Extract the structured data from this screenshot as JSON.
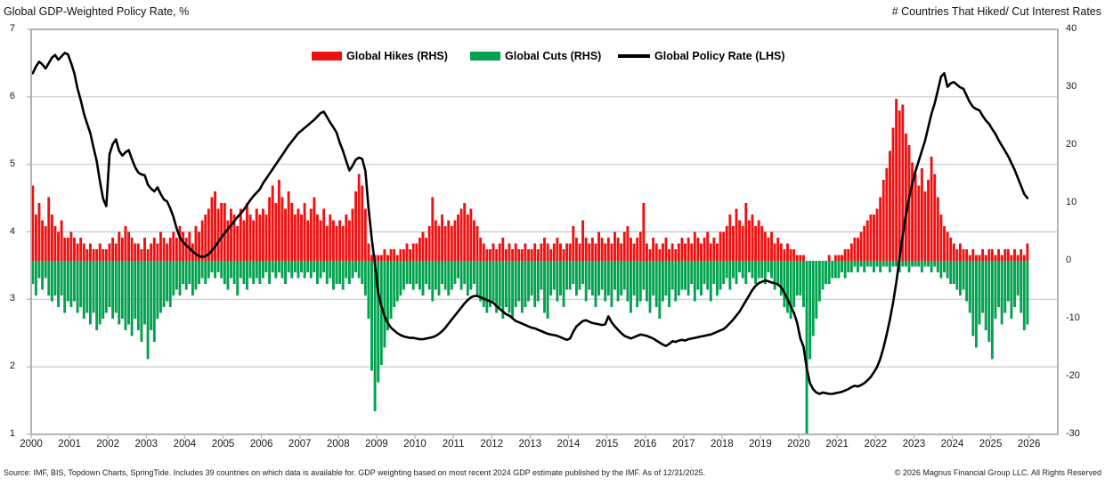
{
  "titles": {
    "left": "Global GDP-Weighted Policy Rate, %",
    "right": "# Countries That Hiked/ Cut Interest Rates"
  },
  "legend": {
    "items": [
      {
        "label": "Global Hikes (RHS)",
        "color": "#ee1111",
        "swatch": "box"
      },
      {
        "label": "Global Cuts (RHS)",
        "color": "#00a24e",
        "swatch": "box"
      },
      {
        "label": "Global Policy Rate (LHS)",
        "color": "#000000",
        "swatch": "line"
      }
    ]
  },
  "footer": {
    "source": "Source: IMF, BIS, Topdown Charts, SpringTide. Includes 39 countries on which data is available for. GDP weighting based on most recent 2024 GDP estimate published by the IMF. As of 12/31/2025.",
    "copyright": "© 2026 Magnus Financial Group LLC. All Rights Reserved"
  },
  "chart_data": {
    "type": "combo",
    "title": "Global GDP-Weighted Policy Rate, %",
    "x_start": "2000-01",
    "x_end": "2025-12",
    "frequency": "monthly",
    "x_ticks": [
      2000,
      2001,
      2002,
      2003,
      2004,
      2005,
      2006,
      2007,
      2008,
      2009,
      2010,
      2011,
      2012,
      2013,
      2014,
      2015,
      2016,
      2017,
      2018,
      2019,
      2020,
      2021,
      2022,
      2023,
      2024,
      2025,
      2026
    ],
    "x_domain_years": 26.75,
    "left_axis": {
      "title": "Global GDP-Weighted Policy Rate, %",
      "min": 1,
      "max": 7,
      "ticks": [
        7,
        6,
        5,
        4,
        3,
        2,
        1
      ]
    },
    "right_axis": {
      "title": "# Countries That Hiked/ Cut Interest Rates",
      "min": -30,
      "max": 40,
      "ticks": [
        40,
        30,
        20,
        10,
        0,
        -10,
        -20,
        -30
      ]
    },
    "grid": {
      "horizontal_at_left_values": [
        6,
        5,
        4,
        3,
        2
      ],
      "color": "#c9c9c9"
    },
    "frame_color": "#b3b3b3",
    "legend_position": "top-inside",
    "series": [
      {
        "name": "Global Hikes (RHS)",
        "type": "bar",
        "axis": "right",
        "color": "#ee1111",
        "start_year": 2000,
        "values_by_year": [
          [
            13,
            8,
            10,
            7,
            6,
            11,
            8,
            6,
            5,
            7,
            4,
            4
          ],
          [
            5,
            4,
            3,
            4,
            3,
            2,
            3,
            2,
            2,
            3,
            2,
            2
          ],
          [
            3,
            4,
            3,
            5,
            4,
            6,
            5,
            4,
            3,
            3,
            2,
            4
          ],
          [
            2,
            3,
            4,
            3,
            5,
            4,
            3,
            4,
            5,
            4,
            6,
            5
          ],
          [
            4,
            5,
            3,
            6,
            5,
            7,
            8,
            9,
            11,
            12,
            9,
            10
          ],
          [
            10,
            7,
            9,
            8,
            6,
            9,
            7,
            10,
            8,
            7,
            9,
            8
          ],
          [
            9,
            8,
            11,
            13,
            10,
            14,
            11,
            9,
            12,
            10,
            8,
            9
          ],
          [
            8,
            10,
            7,
            9,
            11,
            8,
            7,
            9,
            6,
            8,
            7,
            6
          ],
          [
            7,
            6,
            8,
            7,
            9,
            12,
            15,
            13,
            9,
            3,
            1,
            1
          ],
          [
            1,
            1,
            2,
            1,
            2,
            2,
            1,
            2,
            2,
            3,
            2,
            3
          ],
          [
            3,
            4,
            5,
            4,
            6,
            11,
            7,
            6,
            8,
            6,
            7,
            6
          ],
          [
            7,
            8,
            9,
            10,
            8,
            9,
            7,
            6,
            4,
            3,
            2,
            2
          ],
          [
            3,
            2,
            3,
            4,
            2,
            3,
            2,
            3,
            2,
            2,
            3,
            2
          ],
          [
            2,
            3,
            2,
            3,
            4,
            3,
            2,
            3,
            4,
            3,
            2,
            3
          ],
          [
            3,
            6,
            4,
            3,
            7,
            4,
            3,
            4,
            3,
            5,
            4,
            3
          ],
          [
            4,
            3,
            5,
            4,
            3,
            5,
            6,
            4,
            3,
            4,
            5,
            10
          ],
          [
            3,
            2,
            4,
            3,
            2,
            3,
            4,
            2,
            3,
            2,
            3,
            4
          ],
          [
            3,
            4,
            3,
            5,
            4,
            3,
            4,
            5,
            3,
            4,
            3,
            5
          ],
          [
            5,
            6,
            8,
            6,
            9,
            7,
            6,
            10,
            7,
            8,
            6,
            7
          ],
          [
            6,
            5,
            4,
            5,
            3,
            4,
            3,
            2,
            3,
            2,
            2,
            1
          ],
          [
            1,
            1,
            0,
            0,
            0,
            0,
            0,
            0,
            0,
            1,
            0,
            1
          ],
          [
            1,
            1,
            2,
            2,
            3,
            4,
            4,
            5,
            6,
            7,
            8,
            8
          ],
          [
            9,
            11,
            14,
            16,
            19,
            23,
            28,
            26,
            27,
            22,
            20,
            17
          ],
          [
            15,
            13,
            16,
            12,
            14,
            18,
            15,
            11,
            8,
            6,
            5,
            4
          ],
          [
            3,
            2,
            3,
            2,
            2,
            1,
            2,
            1,
            1,
            2,
            1,
            2
          ],
          [
            2,
            1,
            2,
            1,
            2,
            2,
            1,
            2,
            1,
            2,
            1,
            3
          ]
        ]
      },
      {
        "name": "Global Cuts (RHS)",
        "type": "bar",
        "axis": "right",
        "color": "#00a24e",
        "start_year": 2000,
        "values_by_year": [
          [
            -4,
            -6,
            -3,
            -5,
            -3,
            -6,
            -7,
            -6,
            -8,
            -6,
            -9,
            -7
          ],
          [
            -8,
            -7,
            -9,
            -8,
            -10,
            -9,
            -11,
            -9,
            -12,
            -11,
            -10,
            -9
          ],
          [
            -8,
            -10,
            -9,
            -11,
            -10,
            -12,
            -11,
            -13,
            -10,
            -12,
            -14,
            -11
          ],
          [
            -17,
            -12,
            -14,
            -10,
            -9,
            -8,
            -7,
            -8,
            -6,
            -5,
            -6,
            -4
          ],
          [
            -5,
            -4,
            -6,
            -5,
            -4,
            -3,
            -4,
            -3,
            -2,
            -3,
            -2,
            -3
          ],
          [
            -4,
            -5,
            -3,
            -4,
            -6,
            -3,
            -4,
            -5,
            -3,
            -4,
            -3,
            -4
          ],
          [
            -3,
            -2,
            -4,
            -2,
            -3,
            -2,
            -3,
            -4,
            -2,
            -3,
            -2,
            -3
          ],
          [
            -2,
            -3,
            -2,
            -3,
            -2,
            -4,
            -3,
            -2,
            -4,
            -3,
            -5,
            -4
          ],
          [
            -4,
            -5,
            -3,
            -4,
            -3,
            -2,
            -3,
            -4,
            -6,
            -10,
            -19,
            -26
          ],
          [
            -21,
            -18,
            -15,
            -12,
            -10,
            -8,
            -7,
            -6,
            -5,
            -4,
            -4,
            -5
          ],
          [
            -4,
            -5,
            -6,
            -4,
            -5,
            -7,
            -5,
            -6,
            -4,
            -5,
            -6,
            -5
          ],
          [
            -4,
            -3,
            -5,
            -4,
            -6,
            -5,
            -4,
            -6,
            -7,
            -8,
            -9,
            -8
          ],
          [
            -7,
            -9,
            -8,
            -10,
            -8,
            -9,
            -10,
            -8,
            -7,
            -9,
            -8,
            -7
          ],
          [
            -6,
            -8,
            -7,
            -5,
            -9,
            -10,
            -6,
            -5,
            -7,
            -6,
            -8,
            -5
          ],
          [
            -5,
            -4,
            -6,
            -5,
            -4,
            -7,
            -5,
            -6,
            -8,
            -6,
            -5,
            -7
          ],
          [
            -6,
            -8,
            -5,
            -7,
            -6,
            -5,
            -7,
            -9,
            -6,
            -8,
            -7,
            -5
          ],
          [
            -7,
            -9,
            -6,
            -8,
            -10,
            -7,
            -6,
            -8,
            -5,
            -7,
            -6,
            -5
          ],
          [
            -5,
            -6,
            -4,
            -7,
            -5,
            -6,
            -4,
            -5,
            -7,
            -4,
            -6,
            -5
          ],
          [
            -4,
            -3,
            -5,
            -3,
            -4,
            -2,
            -3,
            -4,
            -2,
            -3,
            -4,
            -3
          ],
          [
            -3,
            -4,
            -2,
            -3,
            -5,
            -4,
            -6,
            -8,
            -9,
            -10,
            -8,
            -6
          ],
          [
            -6,
            -8,
            -30,
            -17,
            -13,
            -10,
            -7,
            -5,
            -4,
            -4,
            -3,
            -3
          ],
          [
            -3,
            -2,
            -3,
            -2,
            -2,
            -1,
            -2,
            -1,
            -2,
            -1,
            -1,
            -2
          ],
          [
            -1,
            -2,
            -1,
            -1,
            -2,
            -1,
            -1,
            -2,
            -1,
            -1,
            -2,
            -1
          ],
          [
            -1,
            -1,
            -2,
            -1,
            -1,
            -2,
            -1,
            -2,
            -3,
            -2,
            -3,
            -4
          ],
          [
            -4,
            -5,
            -6,
            -5,
            -7,
            -9,
            -13,
            -15,
            -11,
            -9,
            -12,
            -14
          ],
          [
            -17,
            -10,
            -8,
            -11,
            -9,
            -7,
            -10,
            -8,
            -6,
            -9,
            -12,
            -11
          ]
        ]
      },
      {
        "name": "Global Policy Rate (LHS)",
        "type": "line",
        "axis": "left",
        "color": "#000000",
        "start_year": 2000,
        "values_by_year": [
          [
            6.35,
            6.45,
            6.52,
            6.48,
            6.42,
            6.5,
            6.58,
            6.62,
            6.55,
            6.6,
            6.65,
            6.63
          ],
          [
            6.5,
            6.35,
            6.12,
            5.95,
            5.75,
            5.6,
            5.46,
            5.25,
            5.05,
            4.75,
            4.49,
            4.38
          ],
          [
            5.15,
            5.3,
            5.37,
            5.2,
            5.13,
            5.18,
            5.21,
            5.08,
            4.96,
            4.88,
            4.85,
            4.84
          ],
          [
            4.7,
            4.64,
            4.6,
            4.66,
            4.56,
            4.48,
            4.45,
            4.35,
            4.22,
            4.05,
            3.92,
            3.85
          ],
          [
            3.8,
            3.76,
            3.71,
            3.67,
            3.64,
            3.63,
            3.64,
            3.67,
            3.72,
            3.78,
            3.85,
            3.92
          ],
          [
            3.98,
            4.04,
            4.1,
            4.16,
            4.22,
            4.27,
            4.33,
            4.4,
            4.47,
            4.53,
            4.58,
            4.63
          ],
          [
            4.72,
            4.79,
            4.86,
            4.93,
            5.0,
            5.07,
            5.14,
            5.21,
            5.28,
            5.34,
            5.4,
            5.46
          ],
          [
            5.5,
            5.54,
            5.58,
            5.62,
            5.66,
            5.71,
            5.76,
            5.78,
            5.7,
            5.62,
            5.55,
            5.47
          ],
          [
            5.32,
            5.2,
            5.05,
            4.91,
            4.98,
            5.07,
            5.1,
            5.08,
            4.9,
            4.35,
            3.9,
            3.52
          ],
          [
            3.1,
            2.9,
            2.75,
            2.65,
            2.58,
            2.54,
            2.5,
            2.47,
            2.45,
            2.44,
            2.43,
            2.43
          ],
          [
            2.42,
            2.41,
            2.41,
            2.42,
            2.43,
            2.44,
            2.46,
            2.49,
            2.53,
            2.58,
            2.64,
            2.7
          ],
          [
            2.76,
            2.82,
            2.88,
            2.94,
            2.99,
            3.03,
            3.05,
            3.05,
            3.03,
            3.01,
            2.99,
            2.97
          ],
          [
            2.95,
            2.9,
            2.86,
            2.82,
            2.78,
            2.76,
            2.72,
            2.68,
            2.66,
            2.64,
            2.62,
            2.6
          ],
          [
            2.58,
            2.57,
            2.55,
            2.53,
            2.51,
            2.49,
            2.48,
            2.47,
            2.46,
            2.44,
            2.42,
            2.4
          ],
          [
            2.42,
            2.52,
            2.6,
            2.64,
            2.68,
            2.69,
            2.67,
            2.65,
            2.64,
            2.63,
            2.62,
            2.63
          ],
          [
            2.75,
            2.66,
            2.6,
            2.55,
            2.5,
            2.46,
            2.44,
            2.42,
            2.44,
            2.46,
            2.48,
            2.47
          ],
          [
            2.46,
            2.44,
            2.42,
            2.39,
            2.36,
            2.33,
            2.31,
            2.34,
            2.38,
            2.37,
            2.39,
            2.4
          ],
          [
            2.39,
            2.41,
            2.42,
            2.43,
            2.44,
            2.45,
            2.46,
            2.47,
            2.48,
            2.5,
            2.52,
            2.54
          ],
          [
            2.56,
            2.6,
            2.65,
            2.7,
            2.76,
            2.82,
            2.9,
            2.98,
            3.06,
            3.14,
            3.2,
            3.24
          ],
          [
            3.26,
            3.28,
            3.27,
            3.25,
            3.24,
            3.22,
            3.18,
            3.1,
            3.0,
            2.9,
            2.8,
            2.65
          ],
          [
            2.42,
            2.3,
            1.98,
            1.76,
            1.67,
            1.62,
            1.6,
            1.62,
            1.61,
            1.6,
            1.6,
            1.61
          ],
          [
            1.62,
            1.63,
            1.65,
            1.67,
            1.7,
            1.72,
            1.71,
            1.73,
            1.76,
            1.8,
            1.85,
            1.92
          ],
          [
            2.0,
            2.12,
            2.28,
            2.48,
            2.7,
            2.95,
            3.25,
            3.6,
            3.95,
            4.25,
            4.5,
            4.72
          ],
          [
            4.9,
            5.05,
            5.2,
            5.35,
            5.55,
            5.75,
            5.9,
            6.1,
            6.3,
            6.35,
            6.15,
            6.2
          ],
          [
            6.22,
            6.18,
            6.14,
            6.12,
            6.02,
            5.92,
            5.85,
            5.82,
            5.8,
            5.72,
            5.65,
            5.6
          ],
          [
            5.52,
            5.45,
            5.36,
            5.28,
            5.2,
            5.12,
            5.02,
            4.92,
            4.8,
            4.68,
            4.56,
            4.5
          ]
        ]
      }
    ]
  }
}
